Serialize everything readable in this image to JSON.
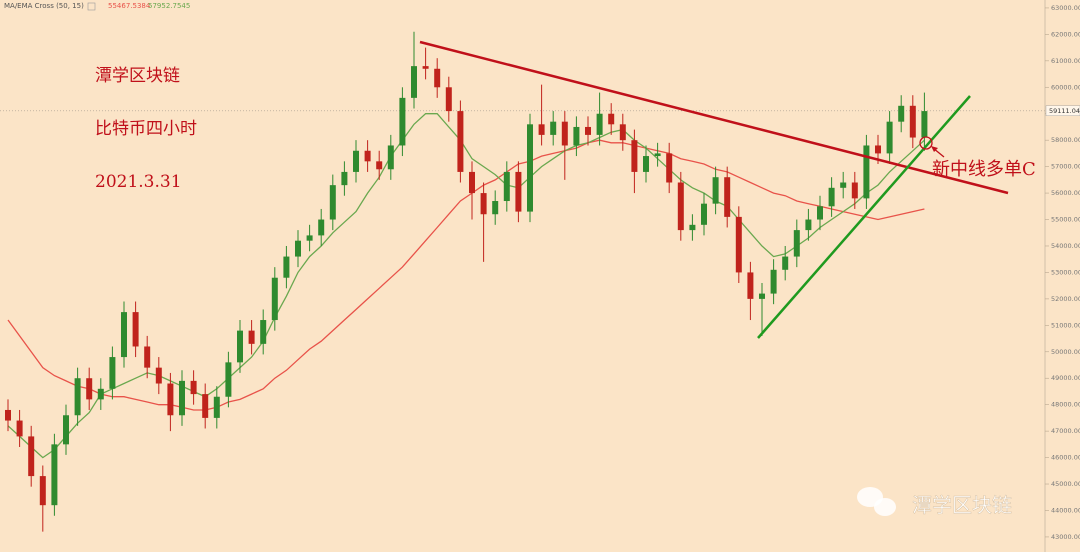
{
  "chart_data": {
    "type": "candlestick",
    "indicator": {
      "label": "MA/EMA Cross (50, 15)",
      "lines": [
        {
          "color": "#e8534a",
          "last": 55467.5384,
          "values": [
            51200,
            50600,
            50000,
            49400,
            49100,
            48900,
            48700,
            48600,
            48400,
            48300,
            48300,
            48200,
            48100,
            48000,
            48000,
            47900,
            47800,
            47800,
            47900,
            48100,
            48200,
            48400,
            48600,
            49000,
            49300,
            49700,
            50100,
            50400,
            50800,
            51200,
            51600,
            52000,
            52400,
            52800,
            53200,
            53700,
            54200,
            54700,
            55200,
            55700,
            56000,
            56300,
            56500,
            56800,
            57100,
            57200,
            57400,
            57500,
            57600,
            57700,
            57900,
            58000,
            57900,
            57900,
            57800,
            57700,
            57600,
            57500,
            57300,
            57200,
            57100,
            56900,
            56800,
            56600,
            56400,
            56200,
            56000,
            55900,
            55700,
            55600,
            55500,
            55400,
            55300,
            55200,
            55100,
            55000,
            55100,
            55200,
            55300,
            55400
          ]
        },
        {
          "color": "#6aa84f",
          "last": 57952.7545,
          "values": [
            47200,
            46800,
            46400,
            46000,
            46300,
            46800,
            47300,
            47700,
            48400,
            48600,
            48800,
            49000,
            49200,
            49100,
            48900,
            48700,
            48500,
            48300,
            48600,
            49000,
            49400,
            49800,
            50400,
            51300,
            52100,
            53000,
            53600,
            54000,
            54500,
            54900,
            55300,
            56000,
            56600,
            57400,
            58000,
            58600,
            59000,
            59000,
            58500,
            58000,
            57300,
            57000,
            56700,
            56300,
            56200,
            56600,
            57000,
            57300,
            57600,
            57800,
            57900,
            58100,
            58300,
            58400,
            58000,
            57700,
            57300,
            56900,
            56500,
            56200,
            56000,
            55700,
            55500,
            55000,
            54500,
            54000,
            53600,
            53700,
            54000,
            54300,
            54700,
            55000,
            55300,
            55600,
            56000,
            56300,
            56800,
            57200,
            57600,
            58000
          ]
        }
      ]
    },
    "categories": [
      null,
      null,
      null,
      null,
      null,
      null,
      null,
      null,
      null,
      null,
      null,
      null,
      null,
      null,
      null,
      null,
      null,
      null,
      null,
      null,
      null,
      null,
      null,
      null,
      null,
      null,
      null,
      null,
      null,
      null,
      null,
      null,
      null,
      null,
      null,
      null,
      null,
      null,
      null,
      null,
      null,
      null,
      null,
      null,
      null,
      null,
      null,
      null,
      null,
      null,
      null,
      null,
      null,
      null,
      null,
      null,
      null,
      null,
      null,
      null,
      null,
      null,
      null,
      null,
      null,
      null,
      null,
      null,
      null,
      null,
      null,
      null,
      null,
      null,
      null,
      null,
      null,
      null,
      null,
      null
    ],
    "candles": {
      "up_color": "#2f8a2f",
      "down_color": "#c0231c",
      "open": [
        47800,
        47400,
        46800,
        45300,
        44200,
        46500,
        47600,
        49000,
        48200,
        48600,
        49800,
        51500,
        50200,
        49400,
        48800,
        47600,
        48900,
        48400,
        47500,
        48300,
        49600,
        50800,
        50300,
        51200,
        52800,
        53600,
        54200,
        54400,
        55000,
        56300,
        56800,
        57600,
        57200,
        56900,
        57800,
        59600,
        60800,
        60700,
        60000,
        59100,
        56800,
        56000,
        55200,
        55700,
        56800,
        55300,
        58600,
        58200,
        58700,
        57800,
        58500,
        58200,
        59000,
        58600,
        58000,
        56800,
        57400,
        57500,
        56400,
        54600,
        54800,
        55600,
        56600,
        55100,
        53000,
        52000,
        52200,
        53100,
        53600,
        54600,
        55000,
        55500,
        56200,
        56400,
        55800,
        57800,
        57500,
        58700,
        59300,
        58100
      ],
      "high": [
        48200,
        47800,
        47200,
        45700,
        46900,
        48000,
        49400,
        49400,
        49000,
        50200,
        51900,
        51900,
        50600,
        49800,
        49200,
        49300,
        49300,
        48800,
        48700,
        50000,
        51200,
        51200,
        51600,
        53200,
        54000,
        54600,
        54800,
        55400,
        56700,
        57200,
        58000,
        58000,
        57600,
        58200,
        60000,
        62100,
        61500,
        61100,
        60400,
        59500,
        57200,
        56400,
        56100,
        57200,
        57200,
        59000,
        60100,
        59100,
        59100,
        58900,
        58900,
        59800,
        59400,
        59000,
        58400,
        57800,
        57900,
        57900,
        56800,
        55200,
        56000,
        57000,
        57000,
        55500,
        53400,
        52600,
        53500,
        54000,
        55000,
        55400,
        55900,
        56600,
        56800,
        56800,
        58200,
        58200,
        59100,
        59700,
        59700,
        59800
      ],
      "low": [
        47000,
        46400,
        44900,
        43200,
        43800,
        46100,
        47200,
        47800,
        47800,
        48200,
        49400,
        49800,
        49000,
        48400,
        47000,
        47200,
        48000,
        47100,
        47100,
        47900,
        49200,
        49900,
        49900,
        50800,
        52400,
        53200,
        53800,
        54000,
        54600,
        55900,
        56400,
        56800,
        56500,
        56500,
        57400,
        59200,
        60300,
        59600,
        58700,
        56400,
        55000,
        53400,
        54800,
        55300,
        54900,
        54900,
        57800,
        57800,
        56500,
        57400,
        57800,
        57800,
        58200,
        57600,
        56000,
        56400,
        57000,
        56000,
        54200,
        54200,
        54400,
        55200,
        54700,
        52600,
        51200,
        50600,
        51800,
        52700,
        53200,
        54200,
        54600,
        55100,
        55800,
        55400,
        55400,
        57100,
        57100,
        58300,
        57700,
        57600
      ],
      "close": [
        47400,
        46800,
        45300,
        44200,
        46500,
        47600,
        49000,
        48200,
        48600,
        49800,
        51500,
        50200,
        49400,
        48800,
        47600,
        48900,
        48400,
        47500,
        48300,
        49600,
        50800,
        50300,
        51200,
        52800,
        53600,
        54200,
        54400,
        55000,
        56300,
        56800,
        57600,
        57200,
        56900,
        57800,
        59600,
        60800,
        60700,
        60000,
        59100,
        56800,
        56000,
        55200,
        55700,
        56800,
        55300,
        58600,
        58200,
        58700,
        57800,
        58500,
        58200,
        59000,
        58600,
        58000,
        56800,
        57400,
        57500,
        56400,
        54600,
        54800,
        55600,
        56600,
        55100,
        53000,
        52000,
        52200,
        53100,
        53600,
        54600,
        55000,
        55500,
        56200,
        56400,
        55800,
        57800,
        57500,
        58700,
        59300,
        58100,
        59100
      ]
    },
    "last_price": 59111.04,
    "ylim": [
      42430,
      63300
    ],
    "yticks": [
      {
        "value": 43000,
        "label": "43000.00"
      },
      {
        "value": 44000,
        "label": "44000.00"
      },
      {
        "value": 45000,
        "label": "45000.00"
      },
      {
        "value": 46000,
        "label": "46000.00"
      },
      {
        "value": 47000,
        "label": "47000.00"
      },
      {
        "value": 48000,
        "label": "48000.00"
      },
      {
        "value": 49000,
        "label": "49000.00"
      },
      {
        "value": 50000,
        "label": "50000.00"
      },
      {
        "value": 51000,
        "label": "51000.00"
      },
      {
        "value": 52000,
        "label": "52000.00"
      },
      {
        "value": 53000,
        "label": "53000.00"
      },
      {
        "value": 54000,
        "label": "54000.00"
      },
      {
        "value": 55000,
        "label": "55000.00"
      },
      {
        "value": 56000,
        "label": "56000.00"
      },
      {
        "value": 57000,
        "label": "57000.00"
      },
      {
        "value": 58000,
        "label": "58000.00"
      },
      {
        "value": 59000,
        "label": "59000.00"
      },
      {
        "value": 60000,
        "label": "60000.00"
      },
      {
        "value": 61000,
        "label": "61000.00"
      },
      {
        "value": 62000,
        "label": "62000.00"
      },
      {
        "value": 63000,
        "label": "63000.00"
      }
    ],
    "annotations": [
      "潭学区块链",
      "比特币四小时",
      "2021.3.31"
    ],
    "callout": "新中线多单C",
    "watermark": "潭学区块链"
  }
}
